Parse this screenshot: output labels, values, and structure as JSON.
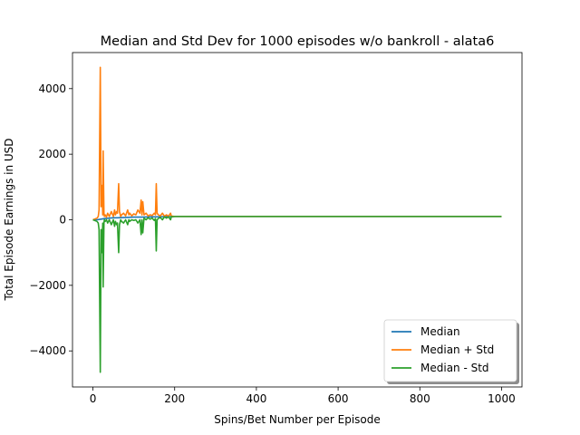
{
  "chart_data": {
    "type": "line",
    "title": "Median and Std Dev for 1000 episodes w/o bankroll - alata6",
    "xlabel": "Spins/Bet Number per Episode",
    "ylabel": "Total Episode Earnings in USD",
    "xlim": [
      -50,
      1050
    ],
    "ylim": [
      -5100,
      5100
    ],
    "xticks": [
      0,
      200,
      400,
      600,
      800,
      1000
    ],
    "yticks": [
      -4000,
      -2000,
      0,
      2000,
      4000
    ],
    "xtick_labels": [
      "0",
      "200",
      "400",
      "600",
      "800",
      "1000"
    ],
    "ytick_labels": [
      "−4000",
      "−2000",
      "0",
      "2000",
      "4000"
    ],
    "grid": false,
    "legend_position": "lower-right",
    "series": [
      {
        "name": "Median",
        "color": "#1f77b4",
        "x": [
          0,
          10,
          20,
          30,
          40,
          50,
          60,
          80,
          100,
          120,
          140,
          160,
          180,
          190,
          200,
          1000
        ],
        "y": [
          0,
          0,
          20,
          40,
          50,
          60,
          60,
          70,
          80,
          80,
          90,
          90,
          100,
          100,
          100,
          100
        ]
      },
      {
        "name": "Median + Std",
        "color": "#ff7f0e",
        "x": [
          0,
          10,
          13,
          15,
          18,
          20,
          22,
          24,
          25,
          27,
          28,
          30,
          33,
          36,
          40,
          45,
          50,
          53,
          55,
          58,
          60,
          63,
          65,
          68,
          70,
          75,
          80,
          85,
          88,
          90,
          95,
          100,
          105,
          110,
          115,
          118,
          120,
          122,
          125,
          130,
          135,
          140,
          145,
          150,
          153,
          155,
          157,
          160,
          165,
          170,
          175,
          180,
          185,
          190,
          192,
          195,
          200,
          1000
        ],
        "y": [
          0,
          50,
          100,
          300,
          4650,
          400,
          1050,
          150,
          2100,
          200,
          100,
          150,
          80,
          200,
          100,
          250,
          100,
          300,
          150,
          250,
          200,
          1100,
          250,
          100,
          150,
          200,
          120,
          300,
          150,
          200,
          120,
          180,
          150,
          300,
          200,
          600,
          150,
          550,
          150,
          200,
          120,
          150,
          130,
          200,
          150,
          1100,
          200,
          150,
          120,
          200,
          110,
          150,
          110,
          200,
          100,
          110,
          100,
          100
        ]
      },
      {
        "name": "Median - Std",
        "color": "#2ca02c",
        "x": [
          0,
          10,
          13,
          15,
          18,
          20,
          22,
          24,
          25,
          27,
          28,
          30,
          33,
          36,
          40,
          45,
          50,
          53,
          55,
          58,
          60,
          63,
          65,
          68,
          70,
          75,
          80,
          85,
          88,
          90,
          95,
          100,
          105,
          110,
          115,
          118,
          120,
          122,
          125,
          130,
          135,
          140,
          145,
          150,
          153,
          155,
          157,
          160,
          165,
          170,
          175,
          180,
          185,
          190,
          192,
          195,
          200,
          1000
        ],
        "y": [
          0,
          -50,
          -100,
          -300,
          -4650,
          -300,
          -1000,
          -100,
          -2050,
          -100,
          0,
          -50,
          0,
          -100,
          0,
          -150,
          0,
          -200,
          -50,
          -150,
          -100,
          -1000,
          -150,
          0,
          -50,
          -100,
          0,
          -150,
          0,
          -50,
          0,
          -20,
          0,
          -100,
          0,
          -450,
          0,
          -400,
          50,
          0,
          60,
          20,
          50,
          -20,
          40,
          -950,
          0,
          40,
          70,
          0,
          90,
          50,
          90,
          0,
          100,
          90,
          100,
          100
        ]
      }
    ]
  }
}
